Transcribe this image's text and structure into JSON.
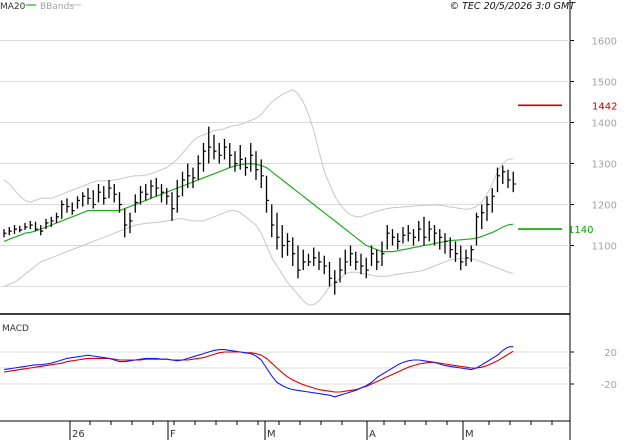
{
  "header": {
    "ma_label": "MA20",
    "bb_label": "BBands",
    "copyright": "© TEC 20/5/2026 3:0 GMT"
  },
  "colors": {
    "price_bar": "#000000",
    "ma20": "#22aa22",
    "bbands": "#c8c8c8",
    "grid": "#dcdcdc",
    "resistance": "#cc0000",
    "support": "#00aa00",
    "macd_line": "#1a1aff",
    "signal_line": "#dd0000"
  },
  "chart_data": [
    {
      "type": "ohlc",
      "legend": [
        "MA20",
        "BBands"
      ],
      "xlabel": "",
      "ylabel": "",
      "ylim": [
        990,
        1660
      ],
      "y_ticks": [
        1100,
        1200,
        1300,
        1400,
        1500,
        1600
      ],
      "y_tick_labels": [
        "1100",
        "1200",
        "1300",
        "1400",
        "1500",
        "1600"
      ],
      "x_tick_labels": [
        "26",
        "F",
        "M",
        "A",
        "M"
      ],
      "grid": true,
      "horizontal_levels": [
        {
          "name": "resistance",
          "value": 1442,
          "label": "1442"
        },
        {
          "name": "support",
          "value": 1140,
          "label": "1140"
        }
      ],
      "bars": [
        [
          1140,
          1120,
          1130
        ],
        [
          1145,
          1125,
          1135
        ],
        [
          1150,
          1128,
          1140
        ],
        [
          1148,
          1132,
          1138
        ],
        [
          1155,
          1138,
          1145
        ],
        [
          1160,
          1140,
          1150
        ],
        [
          1158,
          1135,
          1140
        ],
        [
          1150,
          1125,
          1135
        ],
        [
          1165,
          1140,
          1155
        ],
        [
          1170,
          1145,
          1160
        ],
        [
          1180,
          1155,
          1170
        ],
        [
          1210,
          1165,
          1200
        ],
        [
          1215,
          1180,
          1195
        ],
        [
          1205,
          1175,
          1185
        ],
        [
          1220,
          1190,
          1210
        ],
        [
          1230,
          1195,
          1220
        ],
        [
          1240,
          1200,
          1215
        ],
        [
          1235,
          1190,
          1200
        ],
        [
          1250,
          1205,
          1230
        ],
        [
          1245,
          1200,
          1215
        ],
        [
          1260,
          1215,
          1240
        ],
        [
          1250,
          1205,
          1225
        ],
        [
          1230,
          1180,
          1200
        ],
        [
          1190,
          1120,
          1150
        ],
        [
          1180,
          1130,
          1160
        ],
        [
          1225,
          1180,
          1205
        ],
        [
          1245,
          1200,
          1230
        ],
        [
          1250,
          1210,
          1225
        ],
        [
          1260,
          1215,
          1245
        ],
        [
          1265,
          1220,
          1240
        ],
        [
          1250,
          1205,
          1230
        ],
        [
          1240,
          1200,
          1220
        ],
        [
          1230,
          1160,
          1190
        ],
        [
          1260,
          1180,
          1220
        ],
        [
          1280,
          1220,
          1260
        ],
        [
          1300,
          1240,
          1270
        ],
        [
          1290,
          1240,
          1265
        ],
        [
          1320,
          1260,
          1300
        ],
        [
          1350,
          1280,
          1330
        ],
        [
          1390,
          1300,
          1340
        ],
        [
          1370,
          1310,
          1330
        ],
        [
          1350,
          1300,
          1320
        ],
        [
          1360,
          1310,
          1340
        ],
        [
          1350,
          1290,
          1320
        ],
        [
          1330,
          1280,
          1300
        ],
        [
          1345,
          1285,
          1310
        ],
        [
          1315,
          1270,
          1290
        ],
        [
          1350,
          1280,
          1320
        ],
        [
          1330,
          1260,
          1285
        ],
        [
          1310,
          1240,
          1270
        ],
        [
          1270,
          1180,
          1210
        ],
        [
          1200,
          1120,
          1150
        ],
        [
          1180,
          1090,
          1120
        ],
        [
          1150,
          1070,
          1100
        ],
        [
          1130,
          1075,
          1110
        ],
        [
          1120,
          1050,
          1080
        ],
        [
          1100,
          1020,
          1040
        ],
        [
          1090,
          1040,
          1060
        ],
        [
          1080,
          1050,
          1060
        ],
        [
          1095,
          1050,
          1070
        ],
        [
          1085,
          1040,
          1060
        ],
        [
          1075,
          1030,
          1050
        ],
        [
          1060,
          1000,
          1020
        ],
        [
          1040,
          980,
          1010
        ],
        [
          1070,
          1010,
          1040
        ],
        [
          1090,
          1030,
          1060
        ],
        [
          1100,
          1050,
          1080
        ],
        [
          1085,
          1040,
          1060
        ],
        [
          1080,
          1030,
          1050
        ],
        [
          1070,
          1020,
          1040
        ],
        [
          1100,
          1050,
          1080
        ],
        [
          1090,
          1040,
          1060
        ],
        [
          1110,
          1050,
          1080
        ],
        [
          1150,
          1090,
          1130
        ],
        [
          1140,
          1100,
          1120
        ],
        [
          1130,
          1090,
          1110
        ],
        [
          1145,
          1105,
          1125
        ],
        [
          1150,
          1110,
          1130
        ],
        [
          1140,
          1100,
          1120
        ],
        [
          1160,
          1110,
          1140
        ],
        [
          1170,
          1100,
          1120
        ],
        [
          1160,
          1110,
          1140
        ],
        [
          1150,
          1100,
          1130
        ],
        [
          1140,
          1090,
          1120
        ],
        [
          1130,
          1080,
          1110
        ],
        [
          1120,
          1070,
          1090
        ],
        [
          1110,
          1060,
          1080
        ],
        [
          1100,
          1040,
          1060
        ],
        [
          1090,
          1050,
          1070
        ],
        [
          1100,
          1060,
          1090
        ],
        [
          1180,
          1100,
          1170
        ],
        [
          1200,
          1140,
          1180
        ],
        [
          1220,
          1160,
          1200
        ],
        [
          1240,
          1180,
          1220
        ],
        [
          1290,
          1230,
          1270
        ],
        [
          1295,
          1250,
          1280
        ],
        [
          1285,
          1240,
          1260
        ],
        [
          1280,
          1230,
          1250
        ]
      ],
      "ma20": [
        1110,
        1115,
        1120,
        1125,
        1130,
        1132,
        1135,
        1140,
        1145,
        1150,
        1155,
        1160,
        1165,
        1170,
        1175,
        1180,
        1185,
        1185,
        1185,
        1185,
        1185,
        1185,
        1185,
        1190,
        1195,
        1200,
        1205,
        1210,
        1215,
        1220,
        1225,
        1230,
        1235,
        1240,
        1245,
        1250,
        1255,
        1260,
        1265,
        1270,
        1275,
        1280,
        1285,
        1290,
        1294,
        1297,
        1299,
        1300,
        1298,
        1295,
        1290,
        1280,
        1270,
        1260,
        1250,
        1240,
        1230,
        1220,
        1210,
        1200,
        1190,
        1180,
        1170,
        1160,
        1150,
        1140,
        1130,
        1120,
        1110,
        1100,
        1095,
        1090,
        1085,
        1085,
        1085,
        1087,
        1090,
        1092,
        1095,
        1097,
        1100,
        1102,
        1105,
        1107,
        1110,
        1112,
        1113,
        1114,
        1115,
        1116,
        1118,
        1122,
        1127,
        1132,
        1138,
        1145,
        1150,
        1152
      ],
      "bb_upper": [
        1260,
        1250,
        1235,
        1220,
        1210,
        1205,
        1210,
        1215,
        1215,
        1215,
        1220,
        1225,
        1230,
        1235,
        1240,
        1245,
        1250,
        1255,
        1258,
        1258,
        1258,
        1260,
        1262,
        1265,
        1268,
        1270,
        1270,
        1272,
        1275,
        1280,
        1285,
        1290,
        1300,
        1310,
        1325,
        1340,
        1355,
        1365,
        1370,
        1375,
        1380,
        1382,
        1385,
        1390,
        1393,
        1395,
        1400,
        1405,
        1410,
        1420,
        1435,
        1450,
        1460,
        1468,
        1475,
        1480,
        1470,
        1450,
        1420,
        1380,
        1330,
        1280,
        1250,
        1220,
        1200,
        1185,
        1175,
        1170,
        1170,
        1175,
        1180,
        1183,
        1187,
        1190,
        1192,
        1193,
        1194,
        1195,
        1196,
        1197,
        1198,
        1198,
        1199,
        1198,
        1196,
        1194,
        1192,
        1190,
        1188,
        1190,
        1195,
        1205,
        1225,
        1250,
        1280,
        1300,
        1310,
        1312
      ],
      "bb_lower": [
        1000,
        1005,
        1010,
        1020,
        1030,
        1040,
        1050,
        1060,
        1065,
        1070,
        1075,
        1080,
        1085,
        1090,
        1095,
        1100,
        1105,
        1110,
        1115,
        1120,
        1125,
        1130,
        1135,
        1140,
        1145,
        1150,
        1152,
        1154,
        1155,
        1156,
        1158,
        1160,
        1162,
        1165,
        1165,
        1162,
        1160,
        1160,
        1160,
        1165,
        1170,
        1175,
        1180,
        1185,
        1185,
        1180,
        1170,
        1160,
        1150,
        1130,
        1100,
        1070,
        1050,
        1030,
        1010,
        995,
        980,
        965,
        955,
        955,
        965,
        980,
        1000,
        1010,
        1020,
        1030,
        1035,
        1035,
        1032,
        1030,
        1028,
        1025,
        1025,
        1025,
        1028,
        1030,
        1032,
        1034,
        1035,
        1037,
        1040,
        1045,
        1050,
        1055,
        1060,
        1065,
        1067,
        1068,
        1068,
        1067,
        1065,
        1060,
        1055,
        1050,
        1045,
        1040,
        1035,
        1032
      ]
    },
    {
      "type": "line",
      "name": "MACD",
      "ylim": [
        -35,
        35
      ],
      "y_ticks": [
        20,
        -20
      ],
      "y_tick_labels": [
        "20",
        "-20"
      ],
      "grid": true,
      "series": [
        {
          "name": "macd",
          "values": [
            -2,
            -1,
            0,
            1,
            2,
            3,
            4,
            4,
            5,
            6,
            8,
            10,
            12,
            13,
            14,
            15,
            16,
            15,
            14,
            13,
            12,
            10,
            8,
            8,
            9,
            10,
            11,
            12,
            12,
            12,
            11,
            11,
            10,
            9,
            10,
            12,
            14,
            16,
            18,
            20,
            22,
            23,
            23,
            22,
            21,
            20,
            19,
            18,
            15,
            10,
            0,
            -10,
            -18,
            -22,
            -25,
            -27,
            -28,
            -29,
            -30,
            -31,
            -32,
            -33,
            -34,
            -36,
            -34,
            -32,
            -30,
            -28,
            -25,
            -22,
            -18,
            -12,
            -8,
            -4,
            0,
            4,
            7,
            9,
            10,
            10,
            9,
            8,
            7,
            5,
            3,
            2,
            1,
            0,
            -1,
            -2,
            0,
            4,
            8,
            12,
            16,
            22,
            26,
            27
          ]
        },
        {
          "name": "signal",
          "values": [
            -5,
            -4,
            -3,
            -2,
            -1,
            0,
            1,
            2,
            3,
            4,
            5,
            6,
            8,
            9,
            10,
            11,
            12,
            12,
            12,
            12,
            12,
            11,
            10,
            10,
            10,
            10,
            10,
            11,
            11,
            11,
            11,
            11,
            10,
            10,
            10,
            10,
            11,
            12,
            13,
            15,
            17,
            19,
            20,
            20,
            20,
            20,
            19,
            19,
            18,
            16,
            12,
            6,
            0,
            -6,
            -11,
            -15,
            -18,
            -21,
            -23,
            -25,
            -27,
            -28,
            -29,
            -30,
            -30,
            -29,
            -28,
            -27,
            -25,
            -23,
            -20,
            -17,
            -14,
            -11,
            -8,
            -5,
            -2,
            1,
            3,
            5,
            6,
            7,
            7,
            6,
            5,
            4,
            3,
            2,
            1,
            0,
            0,
            1,
            3,
            6,
            9,
            13,
            17,
            21
          ]
        }
      ]
    }
  ]
}
